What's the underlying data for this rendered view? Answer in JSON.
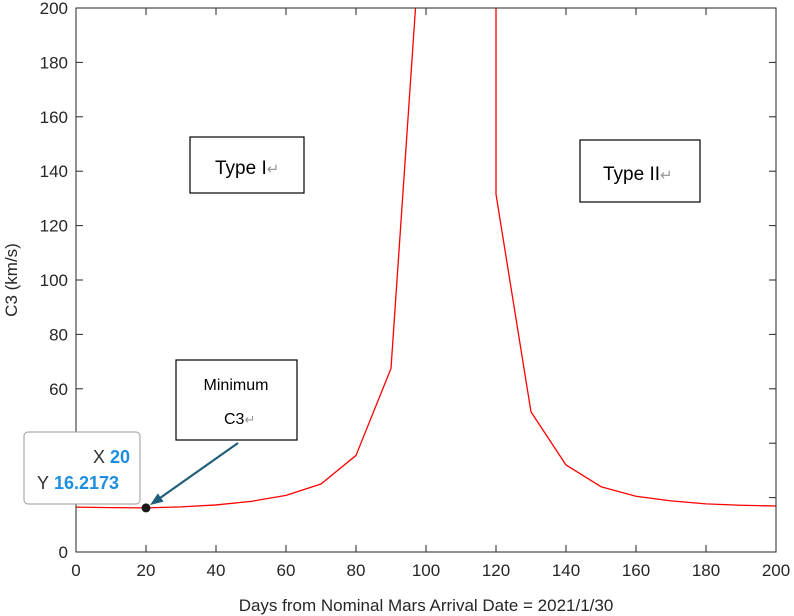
{
  "chart_data": {
    "type": "line",
    "title": "",
    "xlabel": "Days from Nominal Mars Arrival Date = 2021/1/30",
    "ylabel": "C3 (km/s)",
    "xlim": [
      0,
      200
    ],
    "ylim": [
      0,
      200
    ],
    "xticks": [
      0,
      20,
      40,
      60,
      80,
      100,
      120,
      140,
      160,
      180,
      200
    ],
    "yticks": [
      0,
      20,
      40,
      60,
      80,
      100,
      120,
      140,
      160,
      180,
      200
    ],
    "ytick_labels": [
      "0",
      "",
      "",
      "60",
      "80",
      "100",
      "120",
      "140",
      "160",
      "180",
      "200"
    ],
    "grid": false,
    "line_color": "#ff0000",
    "series": [
      {
        "segments": [
          {
            "x": [
              0,
              10,
              20,
              30,
              40,
              50,
              60,
              70,
              80,
              90,
              97
            ],
            "y": [
              16.5,
              16.3,
              16.2173,
              16.6,
              17.3,
              18.6,
              20.8,
              25,
              35.5,
              67.5,
              200
            ]
          },
          {
            "x": [
              120,
              120,
              130,
              140,
              150,
              160,
              170,
              180,
              190,
              200
            ],
            "y": [
              200,
              131.5,
              51.5,
              32,
              24,
              20.5,
              18.8,
              17.7,
              17.2,
              16.9
            ]
          }
        ]
      }
    ],
    "annotations": [
      {
        "text": "Type I",
        "suffix": "↵"
      },
      {
        "text": "Type II",
        "suffix": "↵"
      },
      {
        "line1": "Minimum",
        "line2": "C3",
        "suffix": "↵"
      }
    ],
    "datatip": {
      "x_key": "X",
      "x_value": "20",
      "y_key": "Y",
      "y_value": "16.2173",
      "point_x": 20,
      "point_y": 16.2173,
      "arrow_color": "#1f5f7a"
    }
  }
}
